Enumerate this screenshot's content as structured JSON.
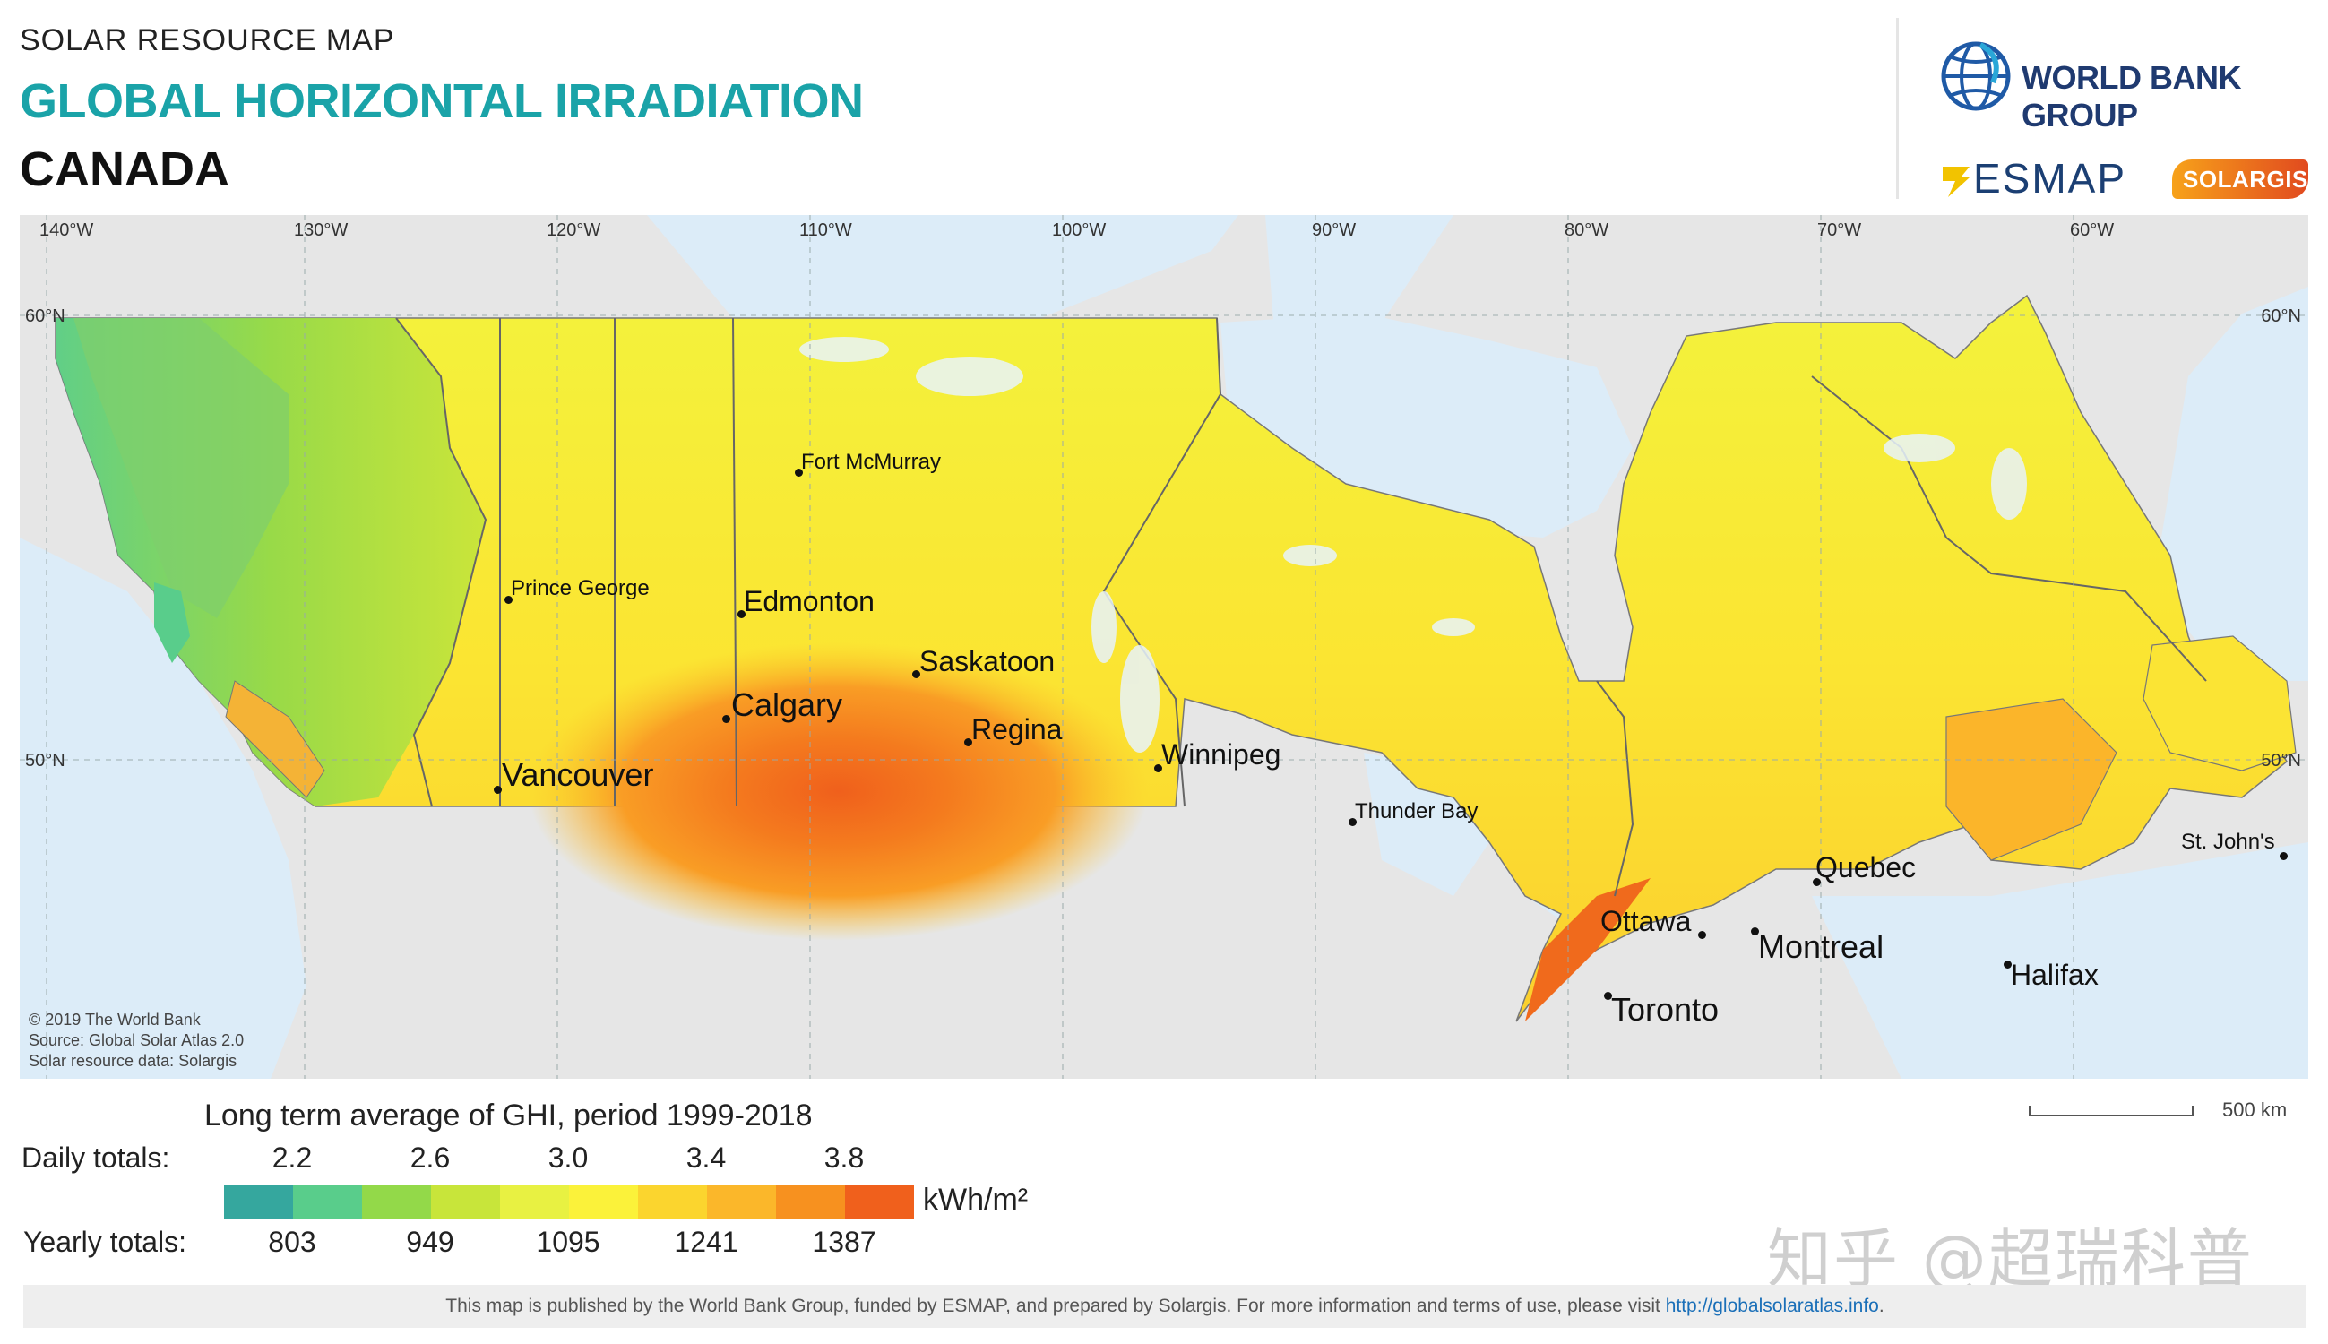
{
  "header": {
    "supertitle": "SOLAR RESOURCE MAP",
    "title": "GLOBAL HORIZONTAL IRRADIATION",
    "country": "CANADA"
  },
  "logos": {
    "world_bank": "WORLD BANK GROUP",
    "esmap": "ESMAP",
    "solargis": "SOLARGIS"
  },
  "map": {
    "longitudes": [
      "140°W",
      "130°W",
      "120°W",
      "110°W",
      "100°W",
      "90°W",
      "80°W",
      "70°W",
      "60°W"
    ],
    "latitudes": [
      "60°N",
      "50°N"
    ],
    "cities": [
      {
        "name": "Fort McMurray",
        "size": "small"
      },
      {
        "name": "Prince George",
        "size": "small"
      },
      {
        "name": "Edmonton",
        "size": "medium"
      },
      {
        "name": "Saskatoon",
        "size": "medium"
      },
      {
        "name": "Calgary",
        "size": "large"
      },
      {
        "name": "Regina",
        "size": "medium"
      },
      {
        "name": "Winnipeg",
        "size": "medium"
      },
      {
        "name": "Vancouver",
        "size": "large"
      },
      {
        "name": "Thunder Bay",
        "size": "small"
      },
      {
        "name": "Quebec",
        "size": "medium"
      },
      {
        "name": "St. John's",
        "size": "small"
      },
      {
        "name": "Ottawa",
        "size": "medium"
      },
      {
        "name": "Montreal",
        "size": "large"
      },
      {
        "name": "Halifax",
        "size": "medium"
      },
      {
        "name": "Toronto",
        "size": "large"
      }
    ],
    "credits": [
      "© 2019 The World Bank",
      "Source: Global Solar Atlas 2.0",
      "Solar resource data: Solargis"
    ],
    "colors": {
      "water": "#dcecf8",
      "land_outside": "#e6e6e6"
    }
  },
  "legend": {
    "title": "Long term average of GHI, period 1999-2018",
    "daily_label": "Daily totals:",
    "yearly_label": "Yearly totals:",
    "daily_values": [
      "2.2",
      "2.6",
      "3.0",
      "3.4",
      "3.8"
    ],
    "yearly_values": [
      "803",
      "949",
      "1095",
      "1241",
      "1387"
    ],
    "unit": "kWh/m²",
    "colors": [
      "#35a79e",
      "#59cd8b",
      "#93d949",
      "#c8e53a",
      "#e8f142",
      "#fbf23a",
      "#fbd52e",
      "#fbb72a",
      "#f7911f",
      "#f0601c"
    ]
  },
  "scale": {
    "label": "500 km"
  },
  "watermark": "知乎 @超瑞科普",
  "footer": {
    "text": "This map is published by the World Bank Group, funded by ESMAP, and prepared by Solargis. For more information and terms of use, please visit ",
    "link": "http://globalsolaratlas.info",
    "end": "."
  }
}
